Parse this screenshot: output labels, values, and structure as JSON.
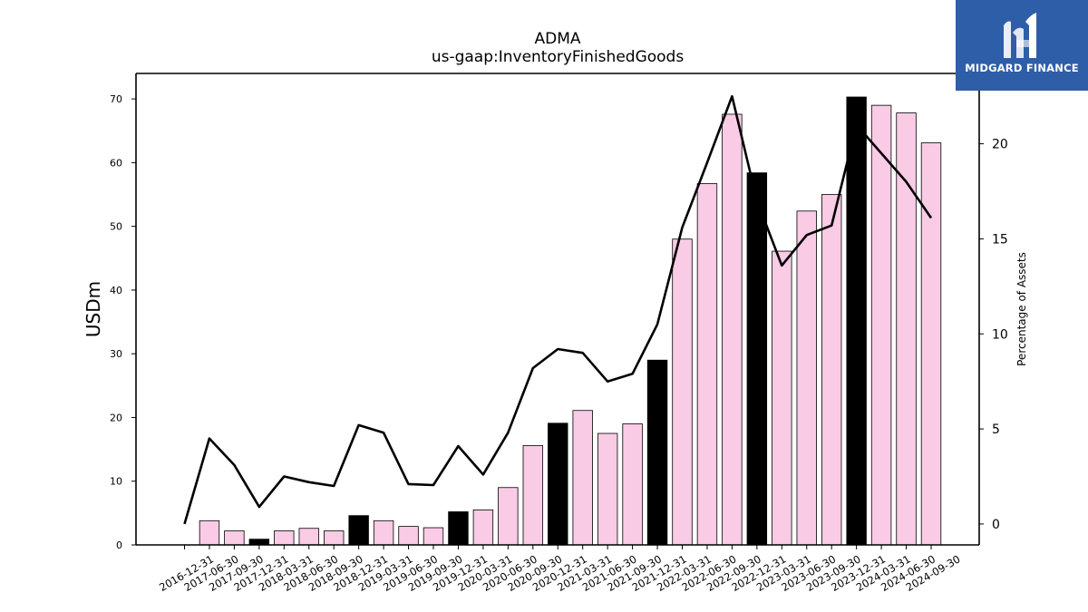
{
  "brand": {
    "name": "MIDGARD FINANCE",
    "bg_color": "#2f5ea8"
  },
  "chart_data": {
    "type": "bar",
    "title": "ADMA",
    "subtitle": "us-gaap:InventoryFinishedGoods",
    "ylabel": "USDm",
    "y2label": "Percentage of Assets",
    "ylim": [
      0,
      74
    ],
    "y2lim": [
      -1.1,
      23.7
    ],
    "yticks": [
      0,
      10,
      20,
      30,
      40,
      50,
      60,
      70
    ],
    "y2ticks": [
      0,
      5,
      10,
      15,
      20
    ],
    "categories": [
      "2016-12-31",
      "2017-06-30",
      "2017-09-30",
      "2017-12-31",
      "2018-03-31",
      "2018-06-30",
      "2018-09-30",
      "2018-12-31",
      "2019-03-31",
      "2019-06-30",
      "2019-09-30",
      "2019-12-31",
      "2020-03-31",
      "2020-06-30",
      "2020-09-30",
      "2020-12-31",
      "2021-03-31",
      "2021-06-30",
      "2021-09-30",
      "2021-12-31",
      "2022-03-31",
      "2022-06-30",
      "2022-09-30",
      "2022-12-31",
      "2023-03-31",
      "2023-06-30",
      "2023-09-30",
      "2023-12-31",
      "2024-03-31",
      "2024-06-30",
      "2024-09-30"
    ],
    "series": [
      {
        "kind": "bar",
        "axis": "left",
        "values": [
          0,
          3.8,
          2.2,
          0.9,
          2.2,
          2.6,
          2.2,
          4.6,
          3.8,
          2.9,
          2.7,
          5.2,
          5.5,
          9.0,
          15.6,
          19.1,
          21.1,
          17.5,
          19.0,
          29.0,
          48.0,
          56.7,
          67.6,
          58.4,
          46.1,
          52.4,
          55.0,
          70.3,
          69.0,
          67.8,
          63.1
        ],
        "colors": [
          "#f9cbe4",
          "#f9cbe4",
          "#f9cbe4",
          "#000000",
          "#f9cbe4",
          "#f9cbe4",
          "#f9cbe4",
          "#000000",
          "#f9cbe4",
          "#f9cbe4",
          "#f9cbe4",
          "#000000",
          "#f9cbe4",
          "#f9cbe4",
          "#f9cbe4",
          "#000000",
          "#f9cbe4",
          "#f9cbe4",
          "#f9cbe4",
          "#000000",
          "#f9cbe4",
          "#f9cbe4",
          "#f9cbe4",
          "#000000",
          "#f9cbe4",
          "#f9cbe4",
          "#f9cbe4",
          "#000000",
          "#f9cbe4",
          "#f9cbe4",
          "#f9cbe4"
        ]
      },
      {
        "kind": "line",
        "axis": "right",
        "color": "#000000",
        "values": [
          0.0,
          4.5,
          3.1,
          0.9,
          2.5,
          2.2,
          2.0,
          5.2,
          4.8,
          2.1,
          2.05,
          4.1,
          2.6,
          4.8,
          8.2,
          9.2,
          9.0,
          7.5,
          7.9,
          10.5,
          15.6,
          19.0,
          22.5,
          17.0,
          13.6,
          15.2,
          15.7,
          21.0,
          19.5,
          18.0,
          16.1
        ]
      }
    ],
    "grid": false,
    "legend": "none"
  }
}
